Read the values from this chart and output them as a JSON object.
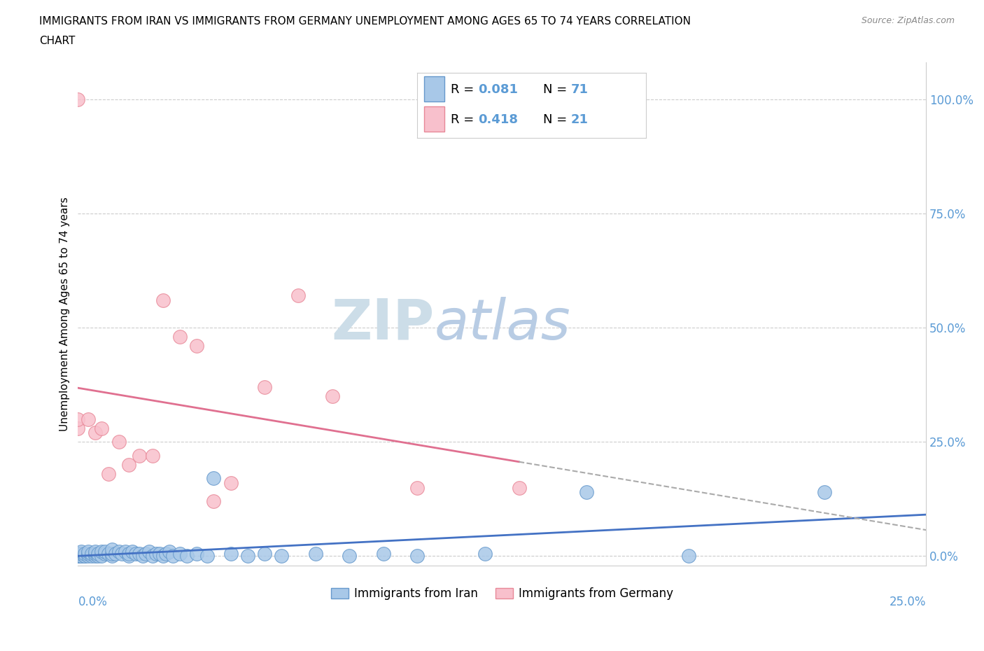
{
  "title_line1": "IMMIGRANTS FROM IRAN VS IMMIGRANTS FROM GERMANY UNEMPLOYMENT AMONG AGES 65 TO 74 YEARS CORRELATION",
  "title_line2": "CHART",
  "source_text": "Source: ZipAtlas.com",
  "xlabel_bottom_left": "0.0%",
  "xlabel_bottom_right": "25.0%",
  "ylabel": "Unemployment Among Ages 65 to 74 years",
  "ytick_labels": [
    "0.0%",
    "25.0%",
    "50.0%",
    "75.0%",
    "100.0%"
  ],
  "ytick_values": [
    0.0,
    0.25,
    0.5,
    0.75,
    1.0
  ],
  "xlim": [
    0.0,
    0.25
  ],
  "ylim": [
    -0.02,
    1.08
  ],
  "iran_scatter_color": "#a8c8e8",
  "iran_edge_color": "#6699cc",
  "germany_scatter_color": "#f8c0cc",
  "germany_edge_color": "#e88898",
  "iran_trend_color": "#4472c4",
  "germany_trend_color": "#e07090",
  "dashed_trend_color": "#aaaaaa",
  "watermark_color": "#ccdde8",
  "R_iran": 0.081,
  "N_iran": 71,
  "R_germany": 0.418,
  "N_germany": 21,
  "legend_iran": "Immigrants from Iran",
  "legend_germany": "Immigrants from Germany",
  "iran_x": [
    0.0,
    0.0,
    0.0,
    0.0,
    0.0,
    0.0,
    0.0,
    0.0,
    0.0,
    0.0,
    0.001,
    0.001,
    0.001,
    0.001,
    0.002,
    0.002,
    0.002,
    0.003,
    0.003,
    0.003,
    0.004,
    0.004,
    0.005,
    0.005,
    0.005,
    0.006,
    0.006,
    0.007,
    0.007,
    0.008,
    0.008,
    0.009,
    0.01,
    0.01,
    0.01,
    0.011,
    0.012,
    0.013,
    0.014,
    0.015,
    0.015,
    0.016,
    0.017,
    0.018,
    0.019,
    0.02,
    0.021,
    0.022,
    0.023,
    0.024,
    0.025,
    0.026,
    0.027,
    0.028,
    0.03,
    0.032,
    0.035,
    0.038,
    0.04,
    0.045,
    0.05,
    0.055,
    0.06,
    0.07,
    0.08,
    0.09,
    0.1,
    0.12,
    0.15,
    0.18,
    0.22
  ],
  "iran_y": [
    0.0,
    0.0,
    0.0,
    0.0,
    0.0,
    0.0,
    0.0,
    0.005,
    0.005,
    0.005,
    0.0,
    0.0,
    0.005,
    0.01,
    0.0,
    0.0,
    0.005,
    0.0,
    0.005,
    0.01,
    0.0,
    0.005,
    0.0,
    0.005,
    0.01,
    0.0,
    0.005,
    0.0,
    0.01,
    0.005,
    0.01,
    0.005,
    0.0,
    0.005,
    0.015,
    0.005,
    0.01,
    0.005,
    0.01,
    0.0,
    0.005,
    0.01,
    0.005,
    0.005,
    0.0,
    0.005,
    0.01,
    0.0,
    0.005,
    0.005,
    0.0,
    0.005,
    0.01,
    0.0,
    0.005,
    0.0,
    0.005,
    0.0,
    0.17,
    0.005,
    0.0,
    0.005,
    0.0,
    0.005,
    0.0,
    0.005,
    0.0,
    0.005,
    0.14,
    0.0,
    0.14
  ],
  "germany_x": [
    0.0,
    0.0,
    0.0,
    0.003,
    0.005,
    0.007,
    0.009,
    0.012,
    0.015,
    0.018,
    0.022,
    0.025,
    0.03,
    0.035,
    0.04,
    0.045,
    0.055,
    0.065,
    0.075,
    0.1,
    0.13
  ],
  "germany_y": [
    0.28,
    0.3,
    1.0,
    0.3,
    0.27,
    0.28,
    0.18,
    0.25,
    0.2,
    0.22,
    0.22,
    0.56,
    0.48,
    0.46,
    0.12,
    0.16,
    0.37,
    0.57,
    0.35,
    0.15,
    0.15
  ]
}
